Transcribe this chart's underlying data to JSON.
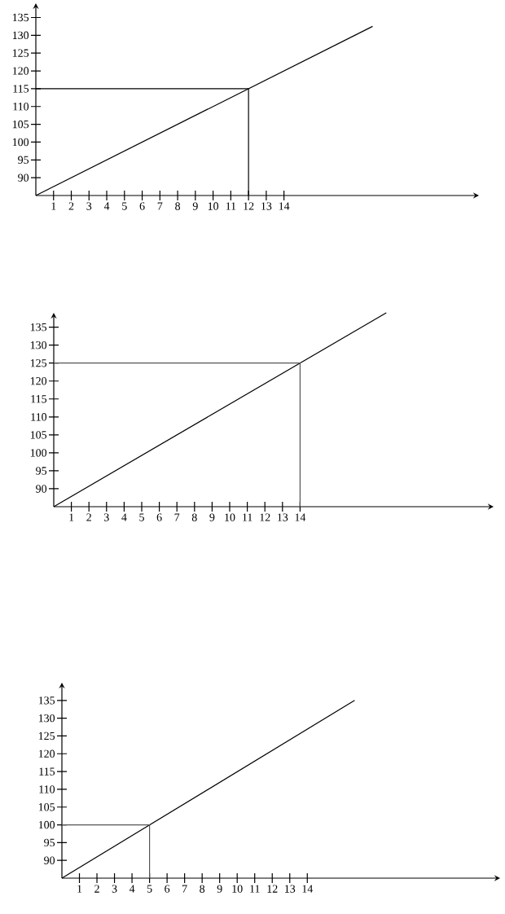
{
  "chart_data": [
    {
      "type": "line",
      "xlim": [
        0,
        25
      ],
      "ylim": [
        85,
        139
      ],
      "xticks": [
        1,
        2,
        3,
        4,
        5,
        6,
        7,
        8,
        9,
        10,
        11,
        12,
        13,
        14
      ],
      "yticks": [
        90,
        95,
        100,
        105,
        110,
        115,
        120,
        125,
        130,
        135
      ],
      "grid": false,
      "marker": "none",
      "line_style": "solid",
      "series": [
        {
          "color": "#000000",
          "x": [
            0,
            19
          ],
          "values": [
            85,
            132.5
          ]
        },
        {
          "color": "#000000",
          "x": [
            0,
            12,
            12
          ],
          "values": [
            115,
            115,
            85
          ]
        }
      ]
    },
    {
      "type": "line",
      "xlim": [
        0,
        25
      ],
      "ylim": [
        85,
        139
      ],
      "xticks": [
        1,
        2,
        3,
        4,
        5,
        6,
        7,
        8,
        9,
        10,
        11,
        12,
        13,
        14
      ],
      "yticks": [
        90,
        95,
        100,
        105,
        110,
        115,
        120,
        125,
        130,
        135
      ],
      "grid": false,
      "marker": "none",
      "line_style": "solid",
      "series": [
        {
          "color": "#000000",
          "x": [
            0,
            18.9
          ],
          "values": [
            85,
            139
          ]
        },
        {
          "color": "#555555",
          "x": [
            0,
            14,
            14
          ],
          "values": [
            125,
            125,
            85
          ]
        }
      ]
    },
    {
      "type": "line",
      "xlim": [
        0,
        25
      ],
      "ylim": [
        85,
        140
      ],
      "xticks": [
        1,
        2,
        3,
        4,
        5,
        6,
        7,
        8,
        9,
        10,
        11,
        12,
        13,
        14
      ],
      "yticks": [
        90,
        95,
        100,
        105,
        110,
        115,
        120,
        125,
        130,
        135
      ],
      "grid": false,
      "marker": "none",
      "line_style": "solid",
      "series": [
        {
          "color": "#000000",
          "x": [
            0,
            16.7
          ],
          "values": [
            85,
            135
          ]
        },
        {
          "color": "#555555",
          "x": [
            0,
            5,
            5
          ],
          "values": [
            100,
            100,
            85
          ]
        }
      ]
    }
  ]
}
